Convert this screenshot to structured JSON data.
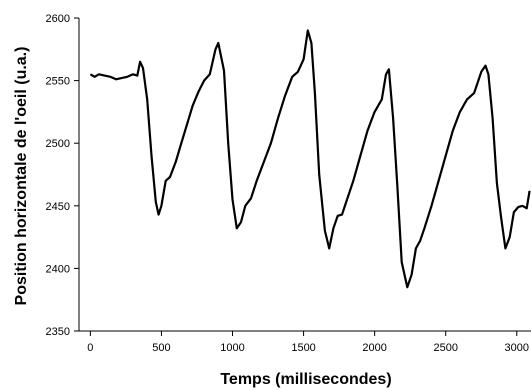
{
  "chart_data": {
    "type": "line",
    "title": "",
    "xlabel": "Temps (millisecondes)",
    "ylabel": "Position horizontale de l'oeil (u.a.)",
    "xlim": [
      -80,
      3100
    ],
    "ylim": [
      2350,
      2600
    ],
    "xticks": [
      0,
      500,
      1000,
      1500,
      2000,
      2500,
      3000
    ],
    "yticks": [
      2350,
      2400,
      2450,
      2500,
      2550,
      2600
    ],
    "grid": false,
    "legend": "none",
    "line_color": "#000000",
    "series": [
      {
        "x": [
          0,
          30,
          60,
          100,
          140,
          180,
          220,
          260,
          300,
          330,
          350,
          370,
          400,
          430,
          460,
          480,
          500,
          530,
          560,
          600,
          640,
          680,
          720,
          760,
          800,
          840,
          880,
          900,
          940,
          970,
          1000,
          1030,
          1060,
          1090,
          1130,
          1170,
          1220,
          1270,
          1320,
          1370,
          1420,
          1460,
          1500,
          1530,
          1555,
          1580,
          1610,
          1650,
          1680,
          1710,
          1740,
          1770,
          1800,
          1850,
          1900,
          1950,
          2000,
          2050,
          2080,
          2100,
          2130,
          2160,
          2190,
          2230,
          2260,
          2290,
          2320,
          2350,
          2400,
          2450,
          2500,
          2550,
          2600,
          2650,
          2700,
          2750,
          2780,
          2800,
          2830,
          2860,
          2890,
          2920,
          2950,
          2980,
          3010,
          3040,
          3070,
          3090
        ],
        "y": [
          2555,
          2553,
          2555,
          2554,
          2553,
          2551,
          2552,
          2553,
          2555,
          2554,
          2565,
          2560,
          2535,
          2490,
          2453,
          2443,
          2450,
          2470,
          2473,
          2485,
          2500,
          2515,
          2530,
          2541,
          2550,
          2555,
          2575,
          2580,
          2558,
          2500,
          2455,
          2432,
          2437,
          2450,
          2456,
          2470,
          2485,
          2500,
          2520,
          2538,
          2553,
          2557,
          2567,
          2590,
          2580,
          2540,
          2475,
          2430,
          2416,
          2432,
          2442,
          2443,
          2453,
          2470,
          2490,
          2510,
          2525,
          2535,
          2555,
          2559,
          2520,
          2465,
          2405,
          2385,
          2395,
          2416,
          2422,
          2432,
          2450,
          2470,
          2490,
          2510,
          2525,
          2535,
          2540,
          2557,
          2562,
          2555,
          2520,
          2468,
          2440,
          2416,
          2425,
          2445,
          2449,
          2450,
          2448,
          2462
        ]
      }
    ]
  }
}
